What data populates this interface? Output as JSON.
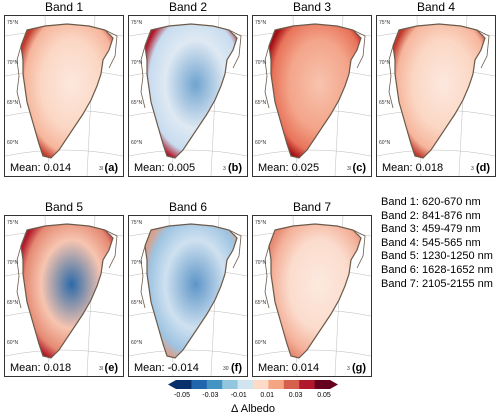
{
  "panels": [
    {
      "title": "Band 1",
      "mean": "Mean: 0.014",
      "letter": "(a)",
      "scheme": "warm"
    },
    {
      "title": "Band 2",
      "mean": "Mean: 0.005",
      "letter": "(b)",
      "scheme": "mixed-cool"
    },
    {
      "title": "Band 3",
      "mean": "Mean: 0.025",
      "letter": "(c)",
      "scheme": "strong-warm"
    },
    {
      "title": "Band 4",
      "mean": "Mean: 0.018",
      "letter": "(d)",
      "scheme": "warm"
    },
    {
      "title": "Band 5",
      "mean": "Mean: 0.018",
      "letter": "(e)",
      "scheme": "mixed-warm"
    },
    {
      "title": "Band 6",
      "mean": "Mean: -0.014",
      "letter": "(f)",
      "scheme": "cool"
    },
    {
      "title": "Band 7",
      "mean": "Mean: 0.014",
      "letter": "(g)",
      "scheme": "light-warm"
    }
  ],
  "lat_labels": [
    "75°N",
    "70°N",
    "65°N",
    "60°N"
  ],
  "lon_labels": [
    "45°W",
    "30°W"
  ],
  "band_legend": [
    "Band 1: 620-670 nm",
    "Band 2: 841-876 nm",
    "Band 3: 459-479 nm",
    "Band 4: 545-565 nm",
    "Band 5: 1230-1250 nm",
    "Band 6: 1628-1652 nm",
    "Band 7: 2105-2155 nm"
  ],
  "colorbar": {
    "ticks": [
      "-0.05",
      "-0.03",
      "-0.01",
      "0.01",
      "0.03",
      "0.05"
    ],
    "label": "Δ Albedo",
    "colors": [
      "#08306b",
      "#2166ac",
      "#4393c3",
      "#92c5de",
      "#d1e5f0",
      "#fddbc7",
      "#f4a582",
      "#d6604d",
      "#b2182b",
      "#67001f"
    ]
  }
}
